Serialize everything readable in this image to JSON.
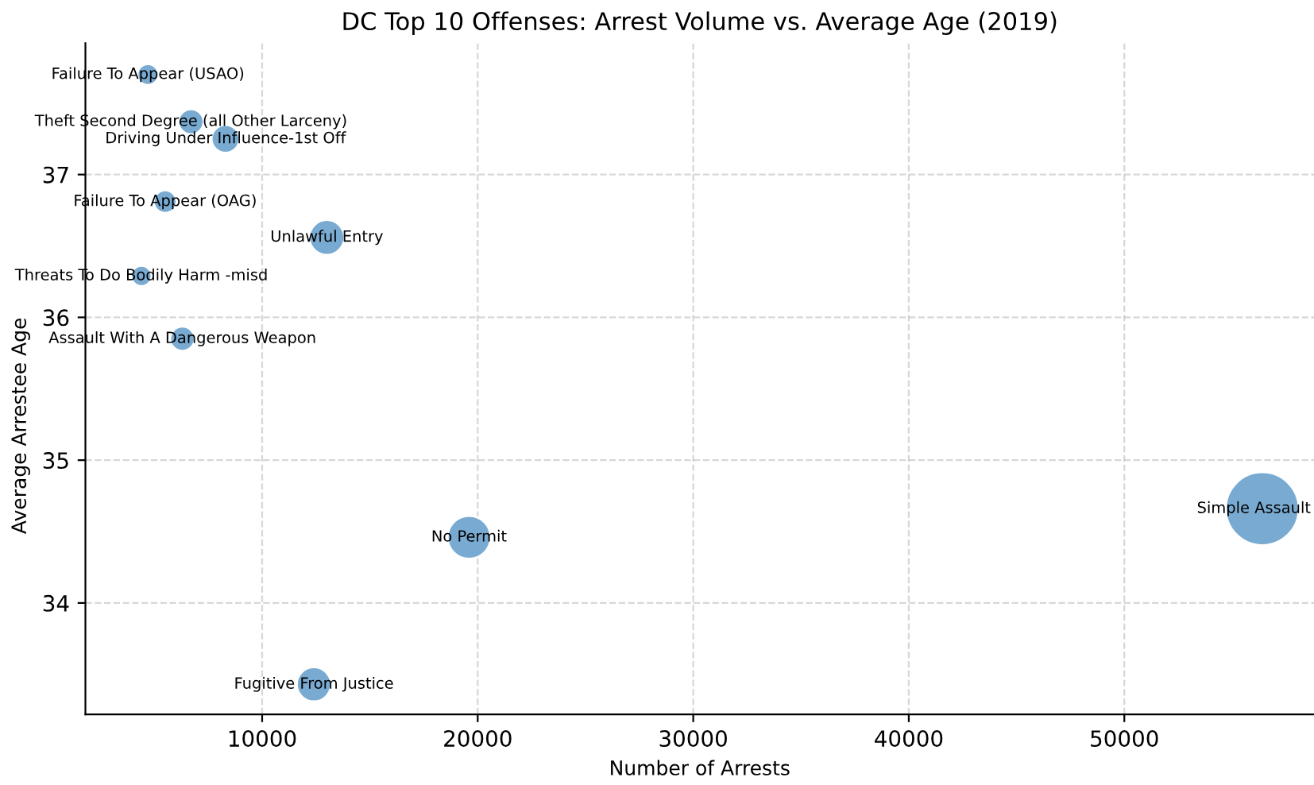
{
  "chart_data": {
    "type": "bubble",
    "title": "DC Top 10 Offenses: Arrest Volume vs. Average Age (2019)",
    "xlabel": "Number of Arrests",
    "ylabel": "Average Arrestee Age",
    "series": [
      {
        "name": "Failure To Appear (USAO)",
        "color": "#79abd2",
        "x": [
          4700
        ],
        "values": [
          37.7
        ],
        "sizes": [
          0.083
        ]
      },
      {
        "name": "Theft Second Degree (all Other Larceny)",
        "color": "#79abd2",
        "x": [
          6700
        ],
        "values": [
          37.37
        ],
        "sizes": [
          0.119
        ]
      },
      {
        "name": "Driving Under Influence-1st Off",
        "color": "#79abd2",
        "x": [
          8300
        ],
        "values": [
          37.25
        ],
        "sizes": [
          0.147
        ]
      },
      {
        "name": "Failure To Appear (OAG)",
        "color": "#79abd2",
        "x": [
          5500
        ],
        "values": [
          36.81
        ],
        "sizes": [
          0.098
        ]
      },
      {
        "name": "Unlawful Entry",
        "color": "#79abd2",
        "x": [
          13000
        ],
        "values": [
          36.56
        ],
        "sizes": [
          0.23
        ]
      },
      {
        "name": "Threats To Do Bodily Harm -misd",
        "color": "#79abd2",
        "x": [
          4400
        ],
        "values": [
          36.29
        ],
        "sizes": [
          0.078
        ]
      },
      {
        "name": "Assault With A Dangerous Weapon",
        "color": "#79abd2",
        "x": [
          6300
        ],
        "values": [
          35.85
        ],
        "sizes": [
          0.112
        ]
      },
      {
        "name": "Simple Assault",
        "color": "#79abd2",
        "x": [
          56400
        ],
        "values": [
          34.66
        ],
        "sizes": [
          1
        ]
      },
      {
        "name": "No Permit",
        "color": "#79abd2",
        "x": [
          19600
        ],
        "values": [
          34.46
        ],
        "sizes": [
          0.348
        ]
      },
      {
        "name": "Fugitive From Justice",
        "color": "#79abd2",
        "x": [
          12400
        ],
        "values": [
          33.43
        ],
        "sizes": [
          0.22
        ]
      }
    ],
    "xlim": [
      1800,
      58800
    ],
    "xticks": [
      10000,
      20000,
      30000,
      40000,
      50000
    ],
    "ylim": [
      33.22,
      37.92
    ],
    "yticks": [
      34,
      35,
      36,
      37
    ],
    "grid": true
  }
}
